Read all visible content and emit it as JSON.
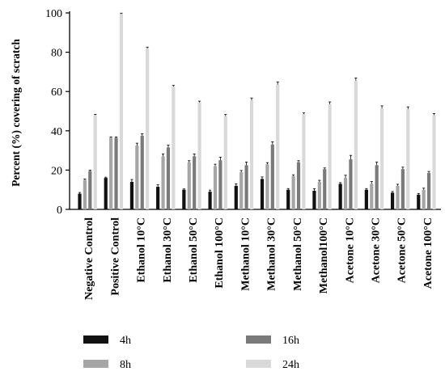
{
  "chart_data": {
    "type": "bar",
    "ylabel": "Percent (%) covering of scratch",
    "ylim": [
      0,
      100
    ],
    "yticks": [
      0,
      20,
      40,
      60,
      80,
      100
    ],
    "categories": [
      "Negative Control",
      "Positive Control",
      "Ethanol 10°C",
      "Ethanol 30°C",
      "Ethanol 50°C",
      "Ethanol 100°C",
      "Methanol 10°C",
      "Methanol 30°C",
      "Methanol 50°C",
      "Methanol100°C",
      "Acetone 10°C",
      "Acetone 30°C",
      "Acetone 50°C",
      "Acetone 100°C"
    ],
    "series": [
      {
        "name": "4h",
        "color": "#111111",
        "values": [
          8,
          16,
          14,
          11.5,
          10,
          9,
          12,
          15.5,
          10,
          9.5,
          13,
          10,
          8.5,
          7.5
        ],
        "errors": [
          0.6,
          0.4,
          1.2,
          1.0,
          0.4,
          0.8,
          1.0,
          1.0,
          0.6,
          1.0,
          0.6,
          0.6,
          0.6,
          0.6
        ]
      },
      {
        "name": "8h",
        "color": "#a6a6a6",
        "values": [
          15,
          36.5,
          32.5,
          27,
          24,
          22,
          19,
          23,
          17,
          14,
          16,
          13,
          12,
          10
        ],
        "errors": [
          0.5,
          0.4,
          1.2,
          1.2,
          0.8,
          1.0,
          0.8,
          0.8,
          0.6,
          0.8,
          1.4,
          1.2,
          0.8,
          0.8
        ]
      },
      {
        "name": "16h",
        "color": "#7a7a7a",
        "values": [
          19.5,
          36.5,
          37.5,
          31.5,
          27,
          25,
          22.5,
          33,
          24,
          20.5,
          25.5,
          22.5,
          20.5,
          18.5
        ],
        "errors": [
          0.5,
          0.4,
          1.0,
          1.2,
          1.2,
          1.6,
          1.6,
          1.4,
          0.8,
          0.6,
          2.0,
          1.6,
          1.0,
          0.8
        ]
      },
      {
        "name": "24h",
        "color": "#d9d9d9",
        "values": [
          48,
          99.5,
          82,
          62.5,
          54.5,
          47.5,
          55.5,
          63.5,
          48.5,
          53.5,
          65.5,
          51.5,
          51,
          48
        ],
        "errors": [
          0.4,
          0.4,
          0.6,
          0.6,
          0.6,
          0.8,
          1.2,
          1.4,
          0.6,
          1.2,
          1.4,
          1.2,
          1.2,
          0.8
        ]
      }
    ],
    "legend_position": "bottom",
    "grid": false
  }
}
